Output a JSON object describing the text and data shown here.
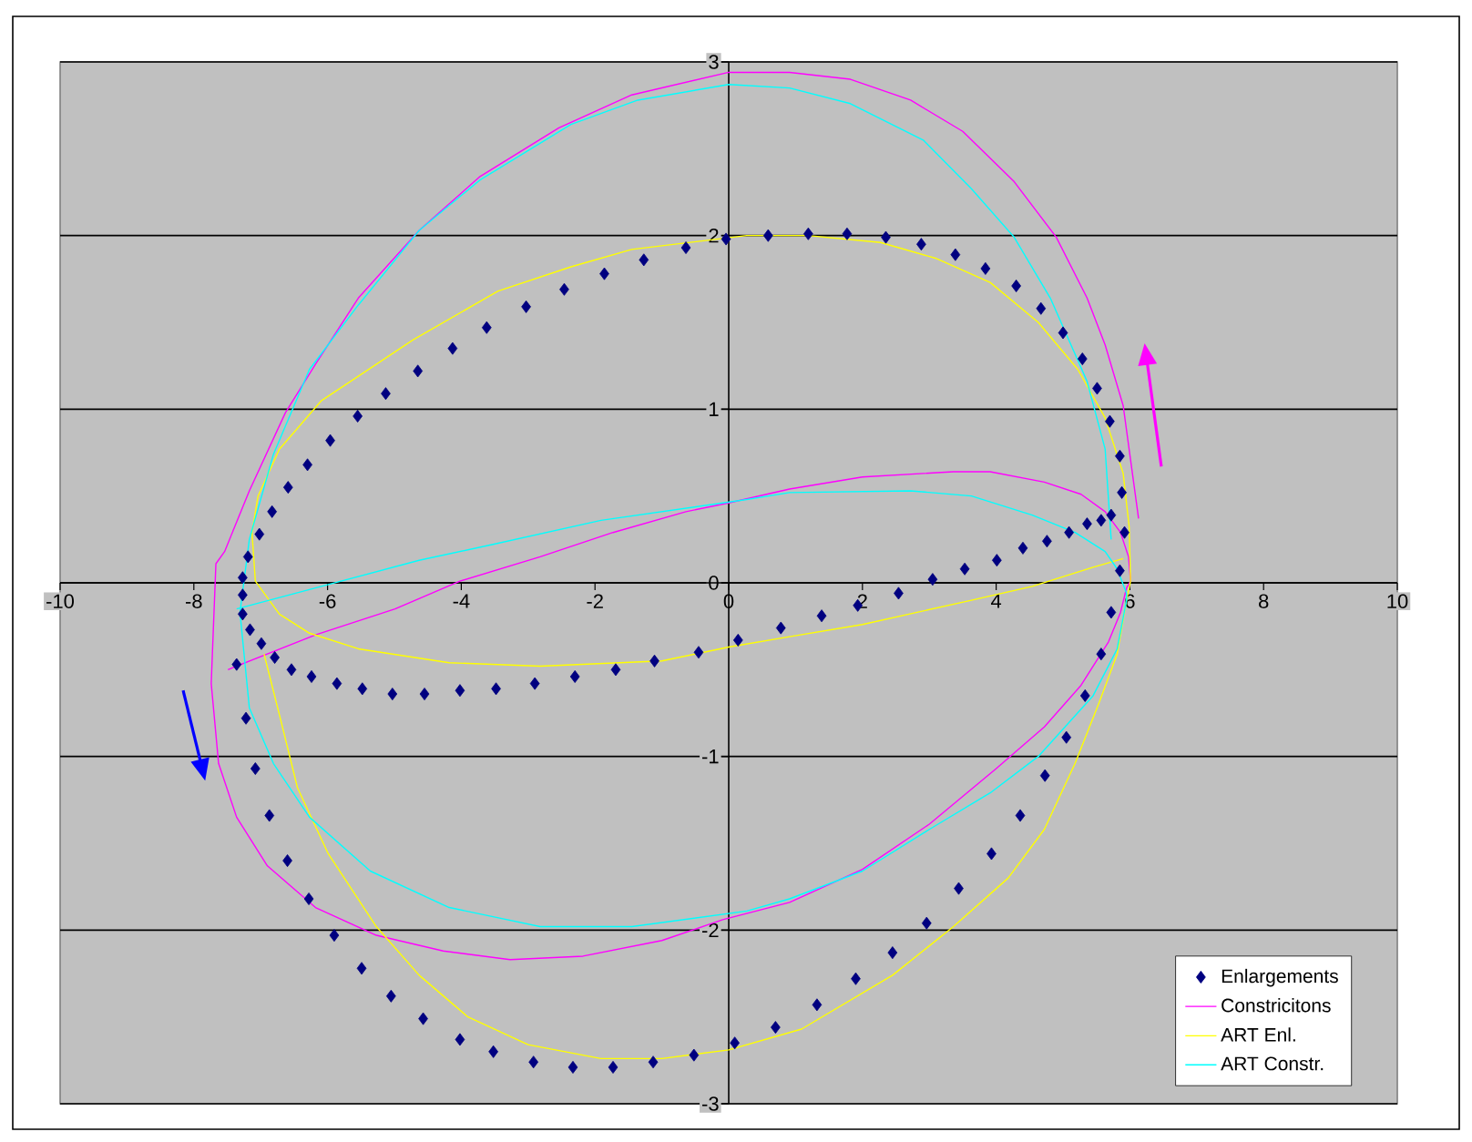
{
  "chart_data": {
    "type": "scatter",
    "xlim": [
      -10,
      10
    ],
    "ylim": [
      -3,
      3
    ],
    "xticks": [
      -10,
      -8,
      -6,
      -4,
      -2,
      0,
      2,
      4,
      6,
      8,
      10
    ],
    "yticks": [
      -3,
      -2,
      -1,
      0,
      1,
      2,
      3
    ],
    "grid": "y",
    "legend": "bottom right",
    "series": [
      {
        "name": "Enlargements",
        "marker": "diamond",
        "color": "#000080",
        "x": [
          -7.27,
          -7.19,
          -7.02,
          -6.83,
          -6.59,
          -6.3,
          -5.96,
          -5.55,
          -5.13,
          -4.65,
          -4.13,
          -3.62,
          -3.03,
          -2.46,
          -1.86,
          -1.27,
          -0.64,
          -0.04,
          0.59,
          1.19,
          1.77,
          2.35,
          2.88,
          3.39,
          3.84,
          4.3,
          4.67,
          5.0,
          5.29,
          5.51,
          5.7,
          5.85,
          5.88,
          5.92,
          5.85,
          5.72,
          5.57,
          5.33,
          5.05,
          4.73,
          4.36,
          3.93,
          3.44,
          2.96,
          2.45,
          1.9,
          1.32,
          0.7,
          0.09,
          -0.52,
          -1.13,
          -1.73,
          -2.33,
          -2.92,
          -3.52,
          -4.02,
          -4.57,
          -5.05,
          -5.49,
          -5.9,
          -6.28,
          -6.6,
          -6.87,
          -7.08,
          -7.22,
          -7.36,
          -7.27,
          -7.27,
          -7.16,
          -6.99,
          -6.79,
          -6.54,
          -6.24,
          -5.86,
          -5.48,
          -5.03,
          -4.55,
          -4.02,
          -3.48,
          -2.9,
          -2.3,
          -1.69,
          -1.11,
          -0.45,
          0.14,
          0.78,
          1.39,
          1.93,
          2.54,
          3.05,
          3.53,
          4.01,
          4.4,
          4.76,
          5.09,
          5.36,
          5.57,
          5.72
        ],
        "values": [
          0.03,
          0.15,
          0.28,
          0.41,
          0.55,
          0.68,
          0.82,
          0.96,
          1.09,
          1.22,
          1.35,
          1.47,
          1.59,
          1.69,
          1.78,
          1.86,
          1.93,
          1.98,
          2.0,
          2.01,
          2.01,
          1.99,
          1.95,
          1.89,
          1.81,
          1.71,
          1.58,
          1.44,
          1.29,
          1.12,
          0.93,
          0.73,
          0.52,
          0.29,
          0.07,
          -0.17,
          -0.41,
          -0.65,
          -0.89,
          -1.11,
          -1.34,
          -1.56,
          -1.76,
          -1.96,
          -2.13,
          -2.28,
          -2.43,
          -2.56,
          -2.65,
          -2.72,
          -2.76,
          -2.79,
          -2.79,
          -2.76,
          -2.7,
          -2.63,
          -2.51,
          -2.38,
          -2.22,
          -2.03,
          -1.82,
          -1.6,
          -1.34,
          -1.07,
          -0.78,
          -0.47,
          -0.18,
          -0.07,
          -0.27,
          -0.35,
          -0.43,
          -0.5,
          -0.54,
          -0.58,
          -0.61,
          -0.64,
          -0.64,
          -0.62,
          -0.61,
          -0.58,
          -0.54,
          -0.5,
          -0.45,
          -0.4,
          -0.33,
          -0.26,
          -0.19,
          -0.13,
          -0.06,
          0.02,
          0.08,
          0.13,
          0.2,
          0.24,
          0.29,
          0.34,
          0.36,
          0.39
        ]
      },
      {
        "name": "Constricitons",
        "type": "line",
        "color": "#ff00ff",
        "x": [
          6.13,
          5.9,
          5.63,
          5.36,
          4.9,
          4.27,
          3.5,
          2.72,
          1.82,
          0.91,
          0,
          -1.45,
          -2.54,
          -3.72,
          -4.63,
          -5.54,
          -6.18,
          -6.63,
          -7.17,
          -7.54,
          -7.67,
          -7.74,
          -7.63,
          -7.36,
          -6.9,
          -6.18,
          -5.27,
          -4.27,
          -3.27,
          -2.18,
          -1.0,
          -0.09,
          0.91,
          2.0,
          3.0,
          4.0,
          4.72,
          5.27,
          5.68,
          5.86,
          5.95,
          6.01,
          5.98,
          5.86,
          5.63,
          5.27,
          4.72,
          3.91,
          3.36,
          2.0,
          0.91,
          0,
          -0.64,
          -1.73,
          -2.82,
          -4.02,
          -4.99,
          -6.18,
          -7.49
        ],
        "values": [
          0.37,
          1.02,
          1.37,
          1.64,
          1.99,
          2.31,
          2.6,
          2.78,
          2.9,
          2.94,
          2.94,
          2.81,
          2.62,
          2.34,
          2.03,
          1.64,
          1.26,
          0.98,
          0.53,
          0.18,
          0.11,
          -0.58,
          -1.04,
          -1.35,
          -1.63,
          -1.87,
          -2.03,
          -2.12,
          -2.17,
          -2.15,
          -2.06,
          -1.94,
          -1.84,
          -1.65,
          -1.39,
          -1.07,
          -0.83,
          -0.59,
          -0.34,
          -0.17,
          -0.03,
          0.01,
          0.15,
          0.29,
          0.41,
          0.51,
          0.58,
          0.64,
          0.64,
          0.61,
          0.54,
          0.46,
          0.41,
          0.29,
          0.15,
          0.01,
          -0.15,
          -0.3,
          -0.5
        ]
      },
      {
        "name": "ART Enl.",
        "type": "line",
        "color": "#ffff00",
        "x": [
          5.9,
          5.45,
          4.54,
          3.63,
          2.0,
          0.91,
          0,
          -1.0,
          -2.82,
          -4.18,
          -5.54,
          -6.27,
          -6.72,
          -7.08,
          -7.13,
          -7.04,
          -6.72,
          -6.09,
          -5.54,
          -4.72,
          -3.45,
          -2.36,
          -1.45,
          0.27,
          1.18,
          2.27,
          3.09,
          3.91,
          4.63,
          5.22,
          5.63,
          5.9,
          5.99,
          6.01,
          5.95,
          5.81,
          5.54,
          5.18,
          4.72,
          4.18,
          3.36,
          2.45,
          1.09,
          0,
          -1.0,
          -1.91,
          -3.0,
          -3.9,
          -4.63,
          -5.27,
          -5.99,
          -6.45,
          -6.72,
          -6.95
        ],
        "values": [
          0.14,
          0.09,
          -0.02,
          -0.1,
          -0.24,
          -0.31,
          -0.37,
          -0.45,
          -0.48,
          -0.46,
          -0.38,
          -0.29,
          -0.18,
          0.01,
          0.29,
          0.5,
          0.77,
          1.05,
          1.19,
          1.4,
          1.68,
          1.82,
          1.92,
          2.0,
          2.0,
          1.96,
          1.87,
          1.73,
          1.5,
          1.23,
          0.95,
          0.63,
          0.32,
          0.01,
          -0.1,
          -0.41,
          -0.69,
          -1.04,
          -1.42,
          -1.7,
          -1.98,
          -2.26,
          -2.57,
          -2.69,
          -2.74,
          -2.74,
          -2.66,
          -2.5,
          -2.26,
          -1.98,
          -1.56,
          -1.18,
          -0.76,
          -0.41
        ]
      },
      {
        "name": "ART Constr.",
        "type": "line",
        "color": "#00ffff",
        "x": [
          -7.36,
          -5.99,
          -4.63,
          -3.54,
          -1.91,
          0.27,
          0.91,
          2.72,
          3.63,
          4.54,
          5.18,
          5.63,
          5.81,
          5.95,
          5.95,
          5.81,
          5.45,
          4.63,
          3.91,
          3.0,
          2.0,
          0.91,
          0.27,
          -1.45,
          -2.82,
          -4.18,
          -5.36,
          -6.27,
          -6.81,
          -7.17,
          -7.31,
          -7.17,
          -6.81,
          -6.27,
          -5.54,
          -4.63,
          -3.72,
          -2.36,
          -1.36,
          0,
          0.91,
          1.82,
          2.91,
          3.63,
          4.27,
          4.81,
          5.36,
          5.63,
          5.72
        ],
        "values": [
          -0.15,
          -0.01,
          0.13,
          0.22,
          0.36,
          0.48,
          0.52,
          0.53,
          0.5,
          0.39,
          0.29,
          0.18,
          0.08,
          -0.06,
          -0.1,
          -0.38,
          -0.65,
          -1.0,
          -1.21,
          -1.42,
          -1.66,
          -1.82,
          -1.89,
          -1.98,
          -1.98,
          -1.87,
          -1.66,
          -1.35,
          -1.04,
          -0.72,
          -0.17,
          0.25,
          0.74,
          1.23,
          1.6,
          2.03,
          2.32,
          2.64,
          2.78,
          2.87,
          2.85,
          2.76,
          2.55,
          2.27,
          1.99,
          1.64,
          1.16,
          0.77,
          0.25
        ]
      }
    ]
  }
}
